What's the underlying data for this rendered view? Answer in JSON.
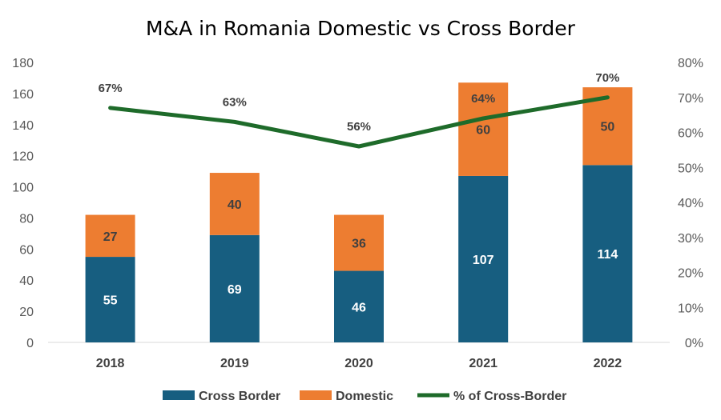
{
  "chart_data": {
    "type": "bar",
    "stacked": true,
    "title": "M&A in Romania Domestic vs Cross Border",
    "categories": [
      "2018",
      "2019",
      "2020",
      "2021",
      "2022"
    ],
    "series": [
      {
        "name": "Cross Border",
        "type": "bar",
        "axis": "left",
        "color": "#175e80",
        "values": [
          55,
          69,
          46,
          107,
          114
        ]
      },
      {
        "name": "Domestic",
        "type": "bar",
        "axis": "left",
        "color": "#ed7d31",
        "values": [
          27,
          40,
          36,
          60,
          50
        ]
      },
      {
        "name": "% of Cross-Border",
        "type": "line",
        "axis": "right",
        "color": "#1e6b2a",
        "values": [
          67,
          63,
          56,
          64,
          70
        ]
      }
    ],
    "y_left": {
      "min": 0,
      "max": 180,
      "step": 20,
      "ticks": [
        "0",
        "20",
        "40",
        "60",
        "80",
        "100",
        "120",
        "140",
        "160",
        "180"
      ]
    },
    "y_right": {
      "min": 0,
      "max": 80,
      "step": 10,
      "ticks": [
        "0%",
        "10%",
        "20%",
        "30%",
        "40%",
        "50%",
        "60%",
        "70%",
        "80%"
      ]
    },
    "pct_labels": [
      "67%",
      "63%",
      "56%",
      "64%",
      "70%"
    ],
    "grid": false,
    "legend_position": "bottom"
  }
}
